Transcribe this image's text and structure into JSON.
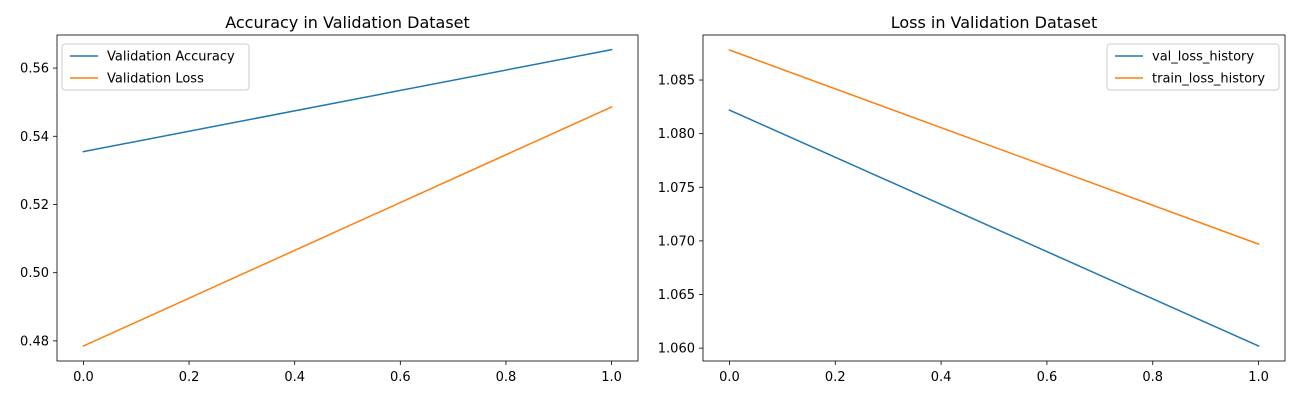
{
  "chart_data": [
    {
      "type": "line",
      "title": "Accuracy in Validation Dataset",
      "xlabel": "",
      "ylabel": "",
      "xlim": [
        -0.05,
        1.05
      ],
      "ylim": [
        0.4741,
        0.5697
      ],
      "x_ticks": [
        0.0,
        0.2,
        0.4,
        0.6,
        0.8,
        1.0
      ],
      "x_tick_labels": [
        "0.0",
        "0.2",
        "0.4",
        "0.6",
        "0.8",
        "1.0"
      ],
      "y_ticks": [
        0.48,
        0.5,
        0.52,
        0.54,
        0.56
      ],
      "y_tick_labels": [
        "0.48",
        "0.50",
        "0.52",
        "0.54",
        "0.56"
      ],
      "grid": false,
      "legend_position": "upper-left",
      "series": [
        {
          "name": "Validation Accuracy",
          "color": "#1f77b4",
          "x": [
            0,
            1
          ],
          "y": [
            0.5355,
            0.5654
          ]
        },
        {
          "name": "Validation Loss",
          "color": "#ff7f0e",
          "x": [
            0,
            1
          ],
          "y": [
            0.4785,
            0.5486
          ]
        }
      ]
    },
    {
      "type": "line",
      "title": "Loss in Validation Dataset",
      "xlabel": "",
      "ylabel": "",
      "xlim": [
        -0.05,
        1.05
      ],
      "ylim": [
        1.0588,
        1.0892
      ],
      "x_ticks": [
        0.0,
        0.2,
        0.4,
        0.6,
        0.8,
        1.0
      ],
      "x_tick_labels": [
        "0.0",
        "0.2",
        "0.4",
        "0.6",
        "0.8",
        "1.0"
      ],
      "y_ticks": [
        1.06,
        1.065,
        1.07,
        1.075,
        1.08,
        1.085
      ],
      "y_tick_labels": [
        "1.060",
        "1.065",
        "1.070",
        "1.075",
        "1.080",
        "1.085"
      ],
      "grid": false,
      "legend_position": "upper-right",
      "series": [
        {
          "name": "val_loss_history",
          "color": "#1f77b4",
          "x": [
            0,
            1
          ],
          "y": [
            1.0822,
            1.0602
          ]
        },
        {
          "name": "train_loss_history",
          "color": "#ff7f0e",
          "x": [
            0,
            1
          ],
          "y": [
            1.0878,
            1.0697
          ]
        }
      ]
    }
  ]
}
